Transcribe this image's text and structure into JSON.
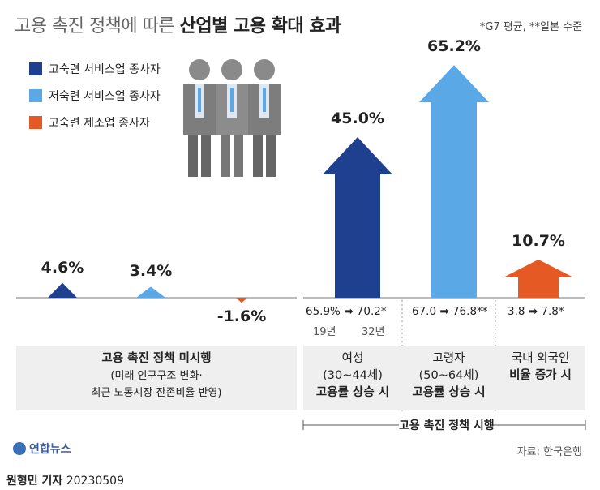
{
  "title": {
    "light": "고용 촉진 정책에 따른 ",
    "bold": "산업별 고용 확대 효과"
  },
  "note": "*G7 평균, **일본 수준",
  "colors": {
    "dark_blue": "#1f3f8f",
    "light_blue": "#5aa9e6",
    "orange": "#e55a24"
  },
  "legend": [
    {
      "label": "고숙련 서비스업 종사자",
      "color": "#1f3f8f"
    },
    {
      "label": "저숙련 서비스업 종사자",
      "color": "#5aa9e6"
    },
    {
      "label": "고숙련 제조업 종사자",
      "color": "#e55a24"
    }
  ],
  "chart_data": {
    "type": "bar",
    "title": "산업별 고용 확대 효과",
    "groups": [
      {
        "name": "고용 촉진 정책 미시행",
        "series": [
          {
            "name": "고숙련 서비스업 종사자",
            "value": 4.6,
            "label": "4.6%"
          },
          {
            "name": "저숙련 서비스업 종사자",
            "value": 3.4,
            "label": "3.4%"
          },
          {
            "name": "고숙련 제조업 종사자",
            "value": -1.6,
            "label": "-1.6%"
          }
        ]
      },
      {
        "name": "고용 촉진 정책 시행",
        "series": [
          {
            "name": "고숙련 서비스업 종사자",
            "value": 45.0,
            "label": "45.0%"
          },
          {
            "name": "저숙련 서비스업 종사자",
            "value": 65.2,
            "label": "65.2%"
          },
          {
            "name": "고숙련 제조업 종사자",
            "value": 10.7,
            "label": "10.7%"
          }
        ]
      }
    ]
  },
  "sub": {
    "women": {
      "from": "65.9%",
      "arrow": "➡",
      "to": "70.2*",
      "year_from": "19년",
      "year_to": "32년"
    },
    "elderly": {
      "from": "67.0",
      "arrow": "➡",
      "to": "76.8**"
    },
    "foreign": {
      "from": "3.8",
      "arrow": "➡",
      "to": "7.8*"
    }
  },
  "panels": {
    "no_policy": {
      "line1": "고용 촉진 정책 미시행",
      "line2": "(미래 인구구조 변화·",
      "line3": "최근 노동시장 잔존비율 반영)"
    },
    "women": {
      "line1": "여성",
      "line2": "(30~44세)",
      "line3": "고용률 상승 시"
    },
    "elderly": {
      "line1": "고령자",
      "line2": "(50~64세)",
      "line3": "고용률 상승 시"
    },
    "foreign": {
      "line1": "국내 외국인",
      "line2": "비율 증가 시"
    }
  },
  "policy_label": "고용 촉진 정책 시행",
  "source": "자료: 한국은행",
  "logo": "연합뉴스",
  "byline": {
    "name": "원형민 기자",
    "date": "20230509"
  }
}
